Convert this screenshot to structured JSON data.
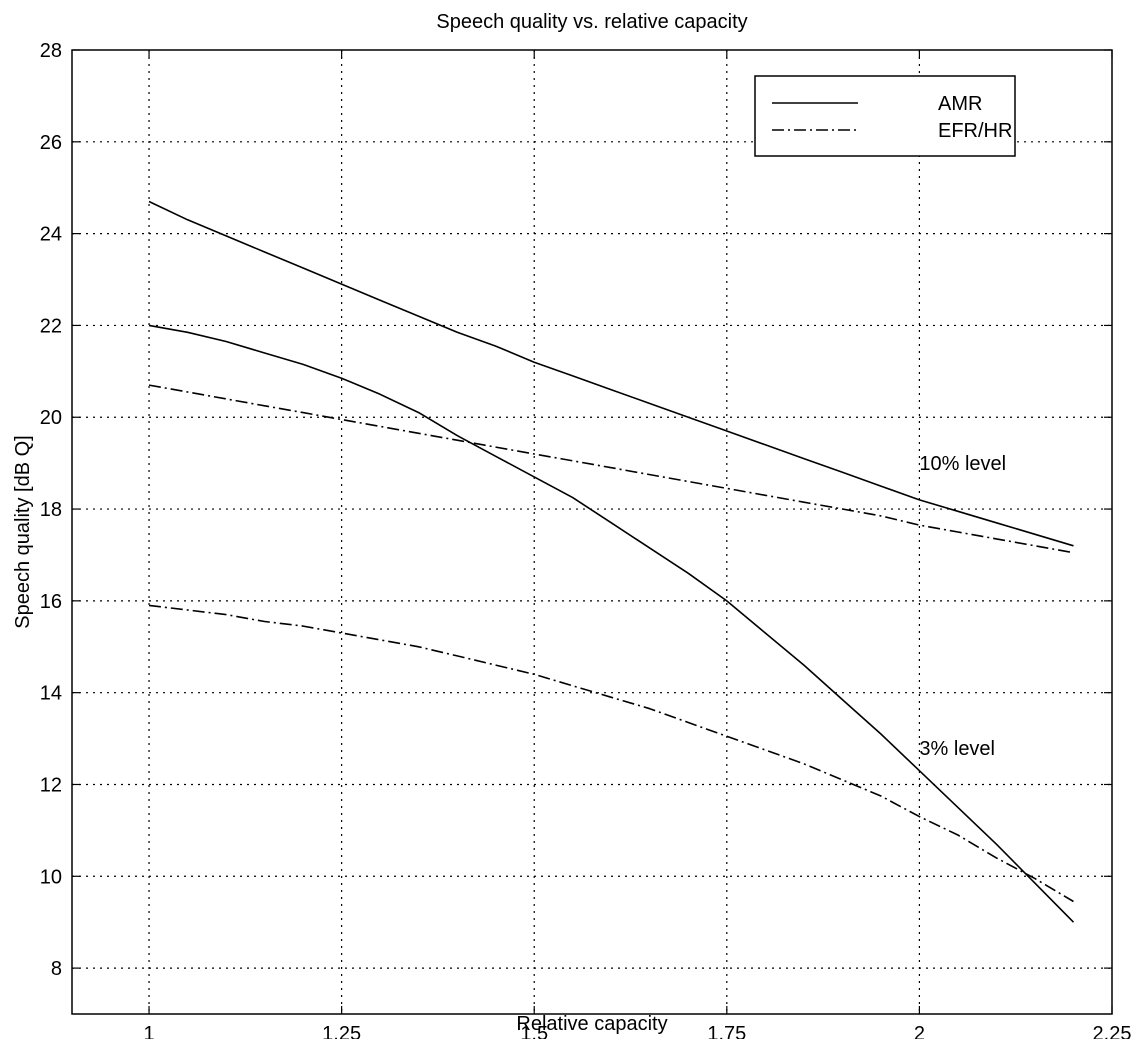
{
  "chart_data": {
    "type": "line",
    "title": "Speech quality vs. relative capacity",
    "xlabel": "Relative capacity",
    "ylabel": "Speech quality [dB Q]",
    "xlim": [
      0.9,
      2.25
    ],
    "ylim": [
      7,
      28
    ],
    "xticks": [
      1,
      1.25,
      1.5,
      1.75,
      2,
      2.25
    ],
    "xtick_labels": [
      "1",
      "1.25",
      "1.5",
      "1.75",
      "2",
      "2.25"
    ],
    "yticks": [
      8,
      10,
      12,
      14,
      16,
      18,
      20,
      22,
      24,
      26,
      28
    ],
    "ytick_labels": [
      "8",
      "10",
      "12",
      "14",
      "16",
      "18",
      "20",
      "22",
      "24",
      "26",
      "28"
    ],
    "grid": true,
    "legend_position": "top-right",
    "legend": [
      {
        "label": "AMR",
        "style": "solid"
      },
      {
        "label": "EFR/HR",
        "style": "dash-dot"
      }
    ],
    "annotations": [
      {
        "text": "10% level",
        "x": 2.0,
        "y": 19.0
      },
      {
        "text": "3% level",
        "x": 2.0,
        "y": 12.8
      }
    ],
    "series": [
      {
        "legend_entry": "AMR",
        "level": "10% level",
        "style": "solid",
        "x": [
          1.0,
          1.05,
          1.1,
          1.15,
          1.2,
          1.25,
          1.3,
          1.35,
          1.4,
          1.45,
          1.5,
          1.55,
          1.6,
          1.65,
          1.7,
          1.75,
          1.8,
          1.85,
          1.9,
          1.95,
          2.0,
          2.05,
          2.1,
          2.15,
          2.2
        ],
        "y": [
          24.7,
          24.3,
          23.95,
          23.6,
          23.25,
          22.9,
          22.55,
          22.2,
          21.85,
          21.55,
          21.2,
          20.9,
          20.6,
          20.3,
          20.0,
          19.7,
          19.4,
          19.1,
          18.8,
          18.5,
          18.2,
          17.95,
          17.7,
          17.45,
          17.2
        ]
      },
      {
        "legend_entry": "EFR/HR",
        "level": "10% level",
        "style": "dash-dot",
        "x": [
          1.0,
          1.05,
          1.1,
          1.15,
          1.2,
          1.25,
          1.3,
          1.35,
          1.4,
          1.45,
          1.5,
          1.55,
          1.6,
          1.65,
          1.7,
          1.75,
          1.8,
          1.85,
          1.9,
          1.95,
          2.0,
          2.05,
          2.1,
          2.15,
          2.2
        ],
        "y": [
          20.7,
          20.55,
          20.4,
          20.25,
          20.1,
          19.95,
          19.8,
          19.65,
          19.5,
          19.35,
          19.2,
          19.05,
          18.9,
          18.75,
          18.6,
          18.45,
          18.3,
          18.15,
          18.0,
          17.85,
          17.65,
          17.5,
          17.35,
          17.2,
          17.05
        ]
      },
      {
        "legend_entry": "AMR",
        "level": "3% level",
        "style": "solid",
        "x": [
          1.0,
          1.05,
          1.1,
          1.15,
          1.2,
          1.25,
          1.3,
          1.35,
          1.4,
          1.45,
          1.5,
          1.55,
          1.6,
          1.65,
          1.7,
          1.75,
          1.8,
          1.85,
          1.9,
          1.95,
          2.0,
          2.05,
          2.1,
          2.15,
          2.2
        ],
        "y": [
          22.0,
          21.85,
          21.65,
          21.4,
          21.15,
          20.85,
          20.5,
          20.1,
          19.6,
          19.15,
          18.7,
          18.25,
          17.7,
          17.15,
          16.6,
          16.0,
          15.3,
          14.6,
          13.85,
          13.1,
          12.3,
          11.5,
          10.7,
          9.85,
          9.0
        ]
      },
      {
        "legend_entry": "EFR/HR",
        "level": "3% level",
        "style": "dash-dot",
        "x": [
          1.0,
          1.05,
          1.1,
          1.15,
          1.2,
          1.25,
          1.3,
          1.35,
          1.4,
          1.45,
          1.5,
          1.55,
          1.6,
          1.65,
          1.7,
          1.75,
          1.8,
          1.85,
          1.9,
          1.95,
          2.0,
          2.05,
          2.1,
          2.15,
          2.2
        ],
        "y": [
          15.9,
          15.8,
          15.7,
          15.55,
          15.45,
          15.3,
          15.15,
          15.0,
          14.8,
          14.6,
          14.4,
          14.15,
          13.9,
          13.65,
          13.35,
          13.05,
          12.75,
          12.45,
          12.1,
          11.75,
          11.3,
          10.9,
          10.4,
          9.95,
          9.45
        ]
      }
    ]
  }
}
